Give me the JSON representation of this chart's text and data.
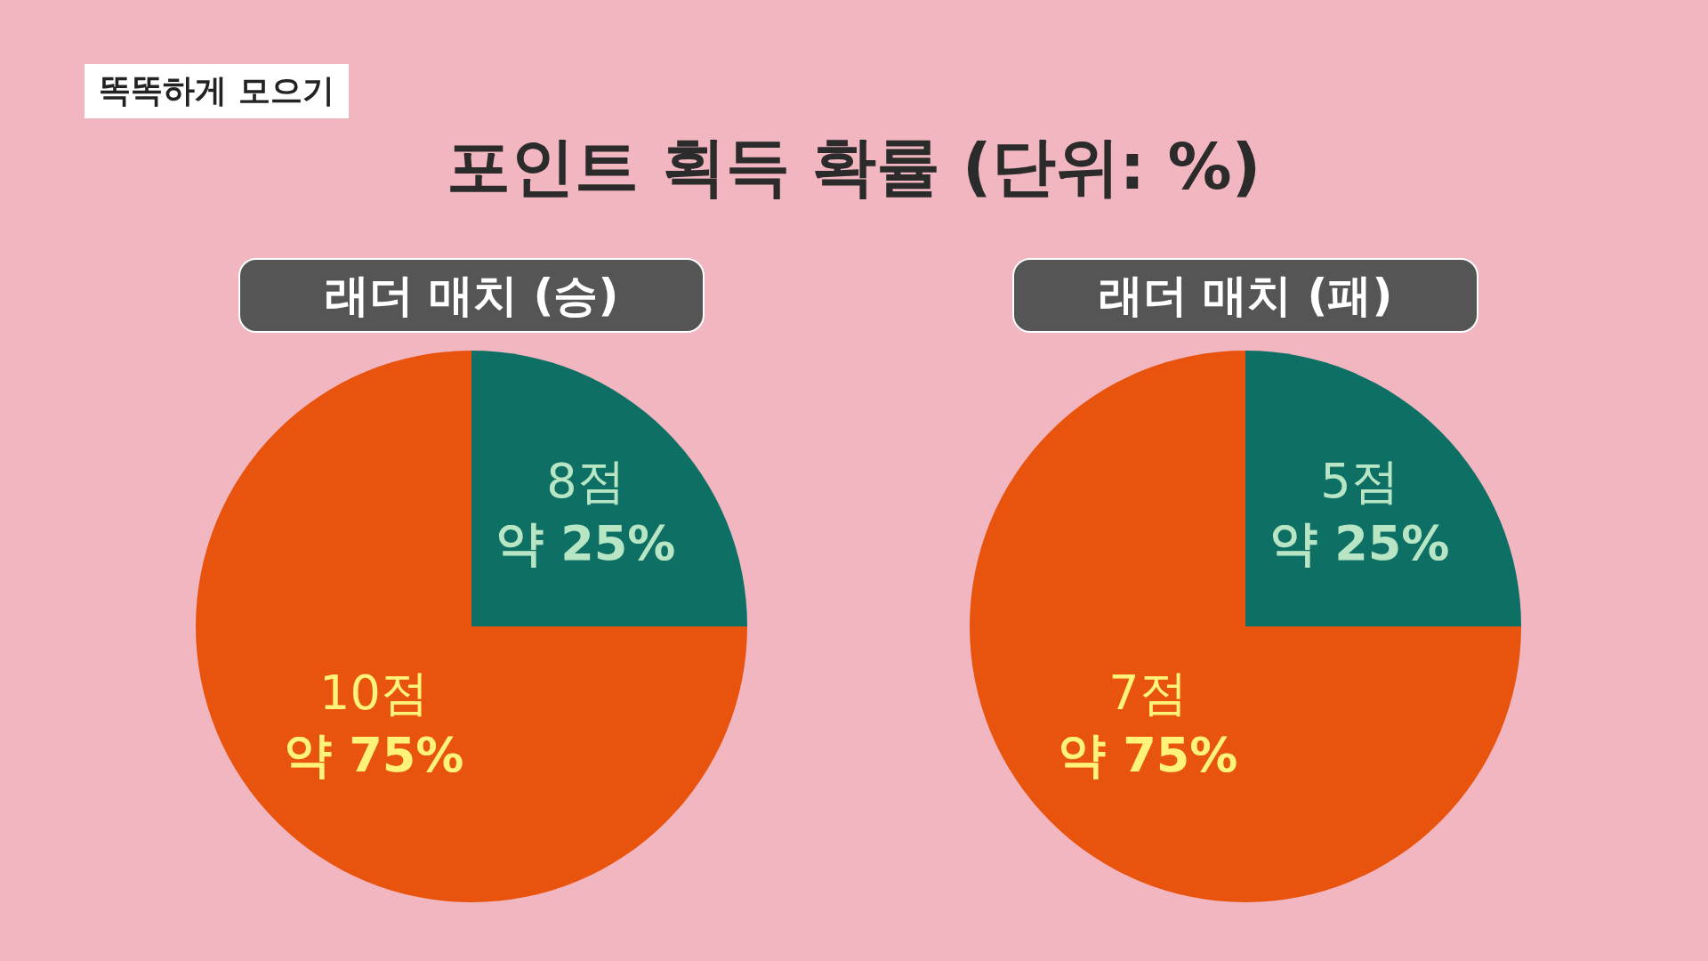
{
  "chart_data": [
    {
      "type": "pie",
      "title": "래더 매치 (승)",
      "subtitle": "포인트 획득 확률 (단위: %)",
      "annotations": [
        "똑똑하게 모으기"
      ],
      "categories": [
        "8점",
        "10점"
      ],
      "values": [
        25,
        75
      ],
      "colors": [
        "#0e7065",
        "#e8530e"
      ],
      "value_labels": [
        "약 25%",
        "약 75%"
      ]
    },
    {
      "type": "pie",
      "title": "래더 매치 (패)",
      "categories": [
        "5점",
        "7점"
      ],
      "values": [
        25,
        75
      ],
      "colors": [
        "#0e7065",
        "#e8530e"
      ],
      "value_labels": [
        "약 25%",
        "약 75%"
      ]
    }
  ]
}
